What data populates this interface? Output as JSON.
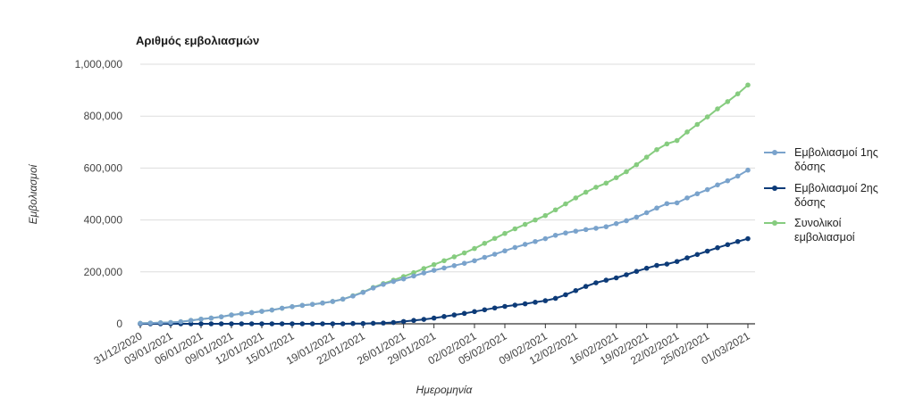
{
  "chart_data": {
    "type": "line",
    "title": "Αριθμός εμβολιασμών",
    "xlabel": "Ημερομηνία",
    "ylabel": "Εμβολιασμοί",
    "ylim": [
      0,
      1000000
    ],
    "yticks": [
      0,
      200000,
      400000,
      600000,
      800000,
      1000000
    ],
    "ytick_labels": [
      "0",
      "200,000",
      "400,000",
      "600,000",
      "800,000",
      "1,000,000"
    ],
    "grid": true,
    "legend_position": "right",
    "x": [
      "31/12/2020",
      "01/01/2021",
      "02/01/2021",
      "03/01/2021",
      "04/01/2021",
      "05/01/2021",
      "06/01/2021",
      "07/01/2021",
      "08/01/2021",
      "09/01/2021",
      "10/01/2021",
      "11/01/2021",
      "12/01/2021",
      "13/01/2021",
      "14/01/2021",
      "15/01/2021",
      "16/01/2021",
      "17/01/2021",
      "18/01/2021",
      "19/01/2021",
      "20/01/2021",
      "21/01/2021",
      "22/01/2021",
      "23/01/2021",
      "24/01/2021",
      "25/01/2021",
      "26/01/2021",
      "27/01/2021",
      "28/01/2021",
      "29/01/2021",
      "30/01/2021",
      "31/01/2021",
      "01/02/2021",
      "02/02/2021",
      "03/02/2021",
      "04/02/2021",
      "05/02/2021",
      "06/02/2021",
      "07/02/2021",
      "08/02/2021",
      "09/02/2021",
      "10/02/2021",
      "11/02/2021",
      "12/02/2021",
      "13/02/2021",
      "14/02/2021",
      "15/02/2021",
      "16/02/2021",
      "17/02/2021",
      "18/02/2021",
      "19/02/2021",
      "20/02/2021",
      "21/02/2021",
      "22/02/2021",
      "23/02/2021",
      "24/02/2021",
      "25/02/2021",
      "26/02/2021",
      "27/02/2021",
      "28/02/2021",
      "01/03/2021"
    ],
    "x_tick_labels": [
      "31/12/2020",
      "03/01/2021",
      "06/01/2021",
      "09/01/2021",
      "12/01/2021",
      "15/01/2021",
      "19/01/2021",
      "22/01/2021",
      "26/01/2021",
      "29/01/2021",
      "02/02/2021",
      "05/02/2021",
      "09/02/2021",
      "12/02/2021",
      "16/02/2021",
      "19/02/2021",
      "22/02/2021",
      "25/02/2021",
      "01/03/2021"
    ],
    "series": [
      {
        "name": "Εμβολιασμοί 1ης δόσης",
        "color": "#7aa3cc",
        "values": [
          2000,
          3000,
          4000,
          5000,
          8000,
          13000,
          18000,
          22000,
          27000,
          34000,
          39000,
          43000,
          48000,
          53000,
          60000,
          66000,
          71000,
          75000,
          80000,
          86000,
          95000,
          107000,
          121000,
          138000,
          152000,
          163000,
          173000,
          184000,
          196000,
          206000,
          215000,
          224000,
          233000,
          243000,
          256000,
          268000,
          281000,
          294000,
          306000,
          317000,
          328000,
          341000,
          350000,
          357000,
          363000,
          368000,
          374000,
          386000,
          397000,
          411000,
          428000,
          446000,
          463000,
          466000,
          485000,
          501000,
          517000,
          535000,
          551000,
          569000,
          592000
        ]
      },
      {
        "name": "Εμβολιασμοί 2ης δόσης",
        "color": "#0d3b78",
        "values": [
          0,
          0,
          0,
          0,
          0,
          0,
          0,
          0,
          0,
          0,
          0,
          0,
          0,
          0,
          0,
          0,
          0,
          0,
          0,
          0,
          0,
          1000,
          1000,
          2000,
          3000,
          5000,
          9000,
          13000,
          17000,
          22000,
          28000,
          34000,
          40000,
          47000,
          54000,
          61000,
          67000,
          72000,
          77000,
          83000,
          89000,
          98000,
          112000,
          128000,
          144000,
          158000,
          168000,
          177000,
          189000,
          202000,
          214000,
          225000,
          230000,
          240000,
          254000,
          267000,
          280000,
          293000,
          305000,
          317000,
          328000
        ]
      },
      {
        "name": "Συνολικοί εμβολιασμοί",
        "color": "#86cc7f",
        "values": [
          2000,
          3000,
          4000,
          5000,
          8000,
          13000,
          18000,
          22000,
          27000,
          34000,
          39000,
          43000,
          48000,
          53000,
          60000,
          66000,
          71000,
          75000,
          80000,
          86000,
          95000,
          108000,
          122000,
          140000,
          155000,
          168000,
          182000,
          197000,
          213000,
          228000,
          243000,
          258000,
          273000,
          290000,
          310000,
          329000,
          348000,
          366000,
          383000,
          400000,
          417000,
          439000,
          462000,
          485000,
          507000,
          526000,
          542000,
          563000,
          586000,
          613000,
          642000,
          671000,
          693000,
          706000,
          739000,
          768000,
          797000,
          828000,
          856000,
          886000,
          920000
        ]
      }
    ]
  }
}
